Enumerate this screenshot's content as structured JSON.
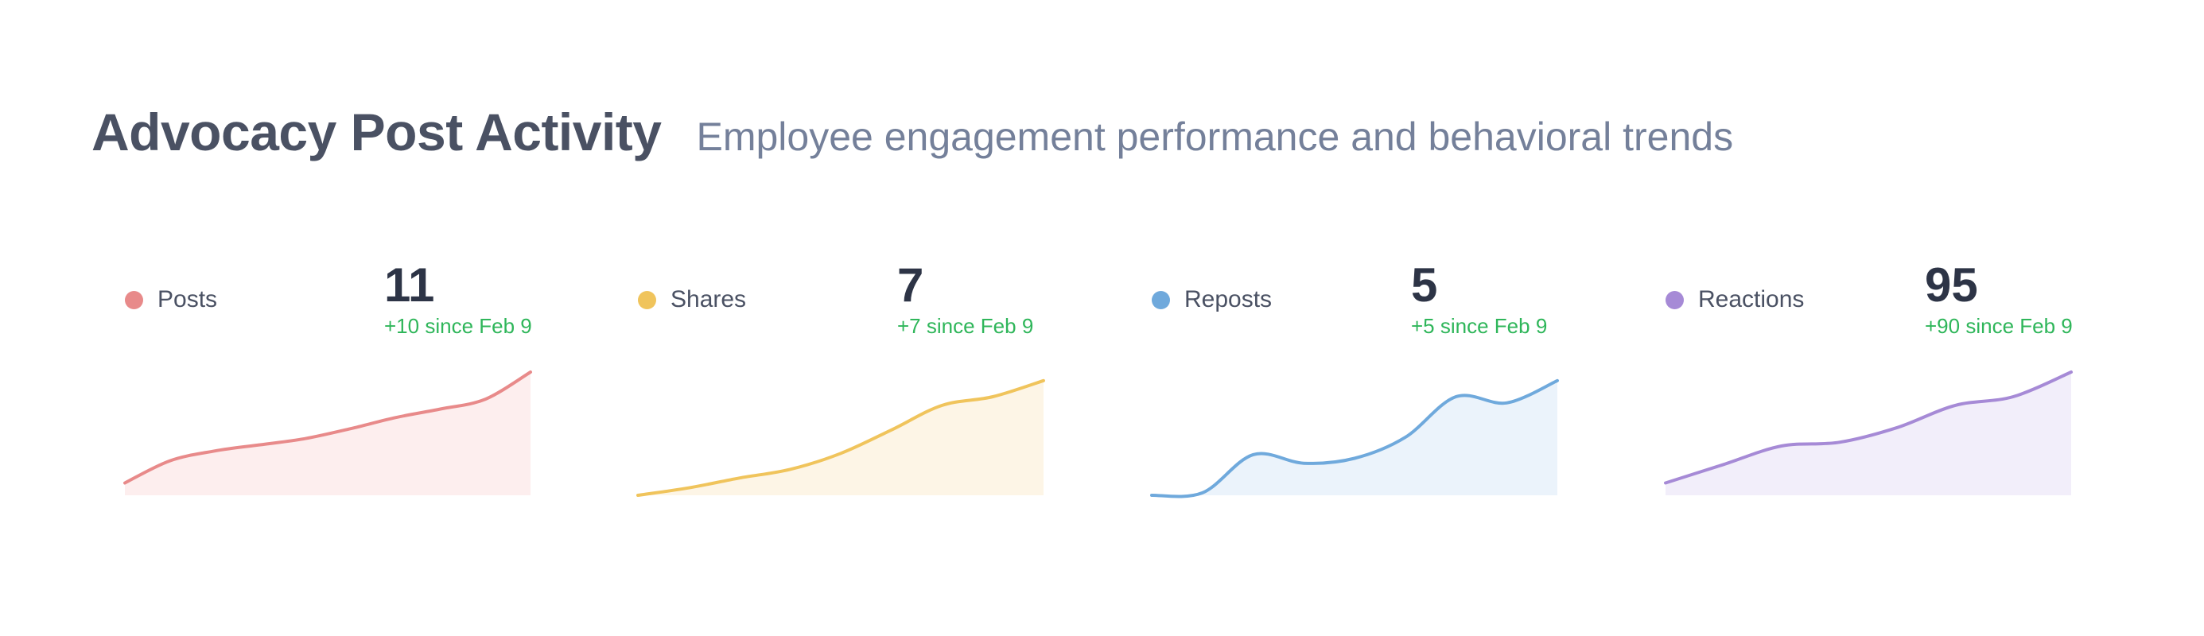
{
  "header": {
    "title": "Advocacy Post Activity",
    "subtitle": "Employee engagement performance and behavioral trends"
  },
  "chart_data": [
    {
      "type": "area",
      "name": "Posts",
      "total": "11",
      "delta": "+10 since Feb 9",
      "color": "#e88a8a",
      "fill": "#fdeeee",
      "values": [
        1,
        2.8,
        3.6,
        4.1,
        4.6,
        5.4,
        6.3,
        7.0,
        7.8,
        10
      ]
    },
    {
      "type": "area",
      "name": "Shares",
      "total": "7",
      "delta": "+7 since Feb 9",
      "color": "#f0c45c",
      "fill": "#fdf5e6",
      "values": [
        0,
        0.6,
        1.4,
        2.1,
        3.4,
        5.3,
        7.3,
        8.0,
        9.3
      ]
    },
    {
      "type": "area",
      "name": "Reposts",
      "total": "5",
      "delta": "+5 since Feb 9",
      "color": "#6fa9dc",
      "fill": "#ebf3fb",
      "values": [
        0,
        0.2,
        3.3,
        2.6,
        3.0,
        4.7,
        8.0,
        7.5,
        9.3
      ]
    },
    {
      "type": "area",
      "name": "Reactions",
      "total": "95",
      "delta": "+90 since Feb 9",
      "color": "#a68ad6",
      "fill": "#f2eefa",
      "values": [
        1,
        2.5,
        4.0,
        4.3,
        5.5,
        7.3,
        8.0,
        10
      ]
    }
  ]
}
